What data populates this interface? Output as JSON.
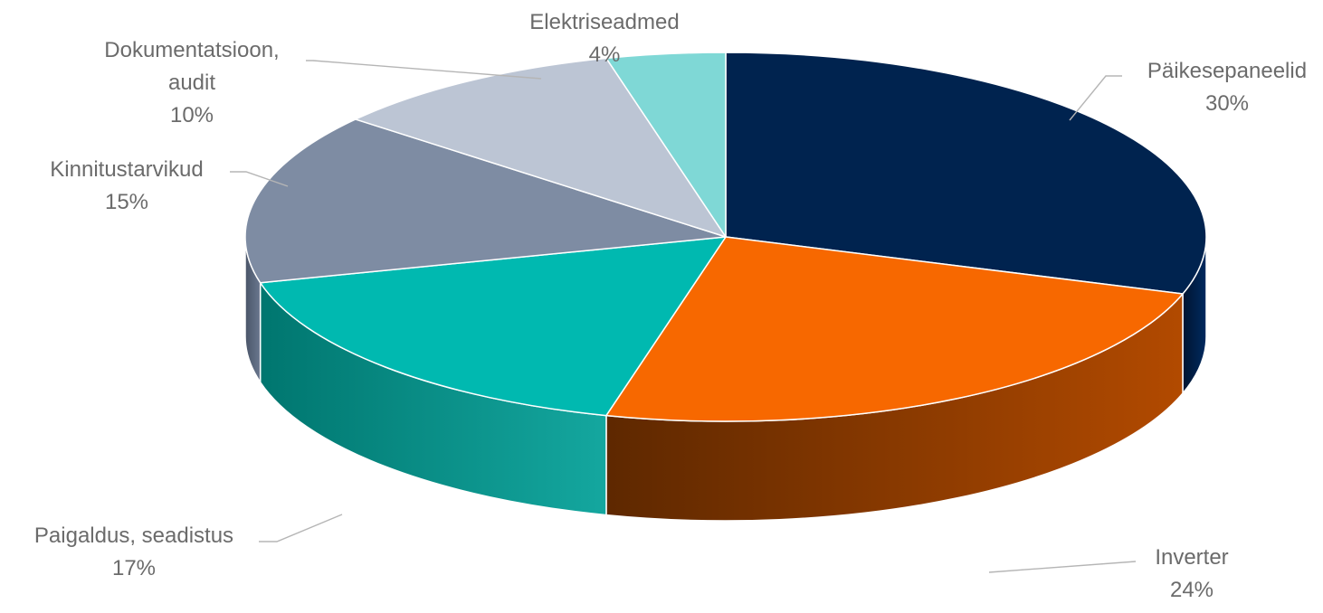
{
  "chart_data": {
    "type": "pie",
    "title": "",
    "style": "3d",
    "slices": [
      {
        "label_lines": [
          "Päikesepaneelid"
        ],
        "label": "Päikesepaneelid",
        "percent_text": "30%",
        "value": 30,
        "color": "#00234f",
        "side_light": "#002a60",
        "side_dark": "#001430"
      },
      {
        "label_lines": [
          "Inverter"
        ],
        "label": "Inverter",
        "percent_text": "24%",
        "value": 24,
        "color": "#f76800",
        "side_light": "#b24a00",
        "side_dark": "#5e2800"
      },
      {
        "label_lines": [
          "Paigaldus, seadistus"
        ],
        "label": "Paigaldus, seadistus",
        "percent_text": "17%",
        "value": 17,
        "color": "#00b9b0",
        "side_light": "#14a79f",
        "side_dark": "#00766f"
      },
      {
        "label_lines": [
          "Kinnitustarvikud"
        ],
        "label": "Kinnitustarvikud",
        "percent_text": "15%",
        "value": 15,
        "color": "#7e8ca3",
        "side_light": "#6a788f",
        "side_dark": "#4a5568"
      },
      {
        "label_lines": [
          "Dokumentatsioon,",
          "audit"
        ],
        "label": "Dokumentatsioon, audit",
        "percent_text": "10%",
        "value": 10,
        "color": "#bcc5d4",
        "side_light": "#a8b1c0",
        "side_dark": "#8a93a2"
      },
      {
        "label_lines": [
          "Elektriseadmed"
        ],
        "label": "Elektriseadmed",
        "percent_text": "4%",
        "value": 4,
        "color": "#7fd8d6",
        "side_light": "#5fc0be",
        "side_dark": "#3d9896"
      }
    ],
    "legend": "none",
    "data_labels": "category name and percentage"
  }
}
